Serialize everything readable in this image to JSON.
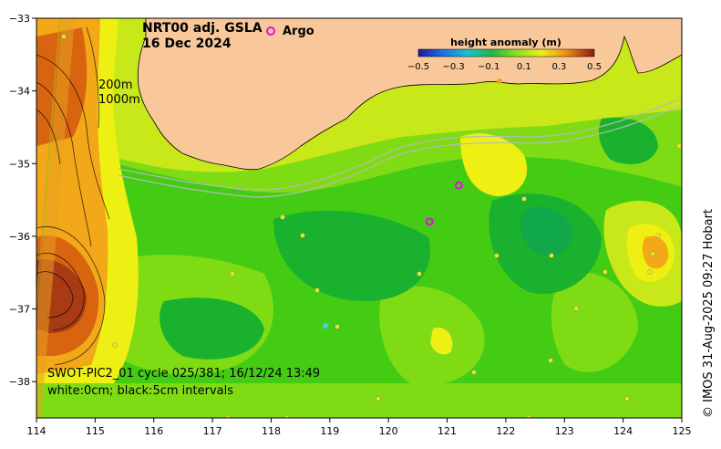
{
  "header": {
    "title_line1": "NRT00 adj. GSLA",
    "title_line2": "16 Dec 2024",
    "argo_label": "Argo"
  },
  "colorbar": {
    "title": "height anomaly (m)",
    "ticks": [
      "−0.5",
      "−0.3",
      "−0.1",
      "0.1",
      "0.3",
      "0.5"
    ]
  },
  "isobaths": {
    "line1": "200m",
    "line2": "1000m"
  },
  "swot": {
    "line1": "SWOT-PIC2_01 cycle 025/381; 16/12/24 13:49",
    "line2": "white:0cm; black:5cm intervals"
  },
  "credit": "© IMOS 31-Aug-2025 09:27 Hobart",
  "axes": {
    "x_ticks": [
      "114",
      "115",
      "116",
      "117",
      "118",
      "119",
      "120",
      "121",
      "122",
      "123",
      "124",
      "125"
    ],
    "y_ticks": [
      "−33",
      "−34",
      "−35",
      "−36",
      "−37",
      "−38"
    ]
  },
  "map_data": {
    "lon_range": [
      114,
      125
    ],
    "lat_range": [
      -38.5,
      -33
    ],
    "colorbar_range_m": [
      -0.5,
      0.5
    ],
    "argo_floats": [
      {
        "lon": 121.2,
        "lat": -35.3
      },
      {
        "lon": 120.7,
        "lat": -35.8
      }
    ]
  },
  "colors": {
    "land": "#f9c89a",
    "argo": "#e010e0",
    "dark_green": "#19b12d",
    "green": "#44cc14",
    "light_green": "#7fdc14",
    "yellow_green": "#c9e81a",
    "yellow": "#eef014",
    "orange": "#f2a818",
    "dark_orange": "#d86410",
    "red_brown": "#a83a14"
  }
}
